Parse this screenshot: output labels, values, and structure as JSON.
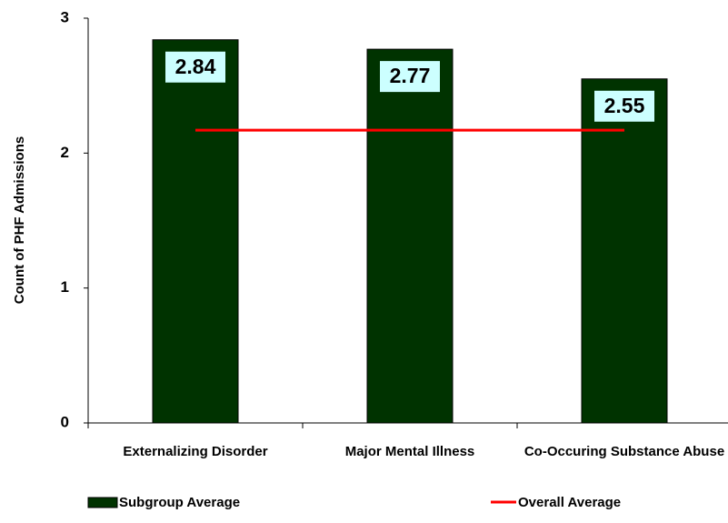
{
  "chart_data": {
    "type": "bar",
    "y_label": "Count of PHF Admissions",
    "categories": [
      "Externalizing Disorder",
      "Major Mental Illness",
      "Co-Occuring Substance Abuse"
    ],
    "series": [
      {
        "name": "Subgroup Average",
        "type": "bar",
        "color": "#003300",
        "values": [
          2.84,
          2.77,
          2.55
        ]
      },
      {
        "name": "Overall Average",
        "type": "line",
        "color": "#ff0000",
        "values": [
          2.17,
          2.17,
          2.17
        ]
      }
    ],
    "ylim": [
      0,
      3
    ],
    "yticks": [
      0,
      1,
      2,
      3
    ],
    "grid": false
  }
}
